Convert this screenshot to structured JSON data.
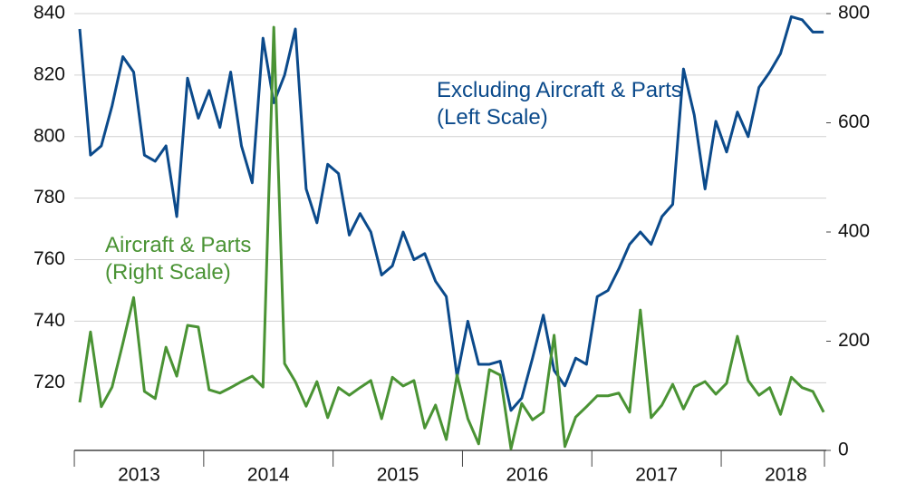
{
  "chart_data": {
    "type": "line",
    "categories": [
      null,
      null,
      null,
      null,
      null,
      null,
      "2013",
      null,
      null,
      null,
      null,
      null,
      null,
      null,
      null,
      null,
      null,
      null,
      "2014",
      null,
      null,
      null,
      null,
      null,
      null,
      null,
      null,
      null,
      null,
      null,
      "2015",
      null,
      null,
      null,
      null,
      null,
      null,
      null,
      null,
      null,
      null,
      null,
      "2016",
      null,
      null,
      null,
      null,
      null,
      null,
      null,
      null,
      null,
      null,
      null,
      "2017",
      null,
      null,
      null,
      null,
      null,
      null,
      null,
      null,
      null,
      null,
      null,
      "2018",
      null,
      null,
      null
    ],
    "series": [
      {
        "name": "Excluding Aircraft & Parts (Left Scale)",
        "color": "#0b4a8b",
        "values": [
          835,
          794,
          797,
          810,
          826,
          821,
          794,
          792,
          797,
          774,
          819,
          806,
          815,
          803,
          821,
          797,
          785,
          832,
          811,
          820,
          835,
          783,
          772,
          791,
          788,
          768,
          775,
          769,
          755,
          758,
          769,
          760,
          762,
          753,
          748,
          722,
          740,
          726,
          726,
          727,
          711,
          715,
          728,
          742,
          724,
          719,
          728,
          726,
          748,
          750,
          757,
          765,
          769,
          765,
          774,
          778,
          822,
          807,
          783,
          805,
          795,
          808,
          800,
          816,
          821,
          827,
          839,
          838,
          834,
          834
        ]
      },
      {
        "name": "Aircraft & Parts (Right Scale)",
        "color": "#4a9334",
        "axis": "y2",
        "values": [
          88,
          217,
          80,
          116,
          196,
          280,
          108,
          95,
          189,
          136,
          229,
          226,
          111,
          105,
          115,
          126,
          136,
          116,
          775,
          159,
          126,
          81,
          126,
          60,
          115,
          101,
          115,
          128,
          58,
          134,
          118,
          128,
          41,
          83,
          20,
          138,
          58,
          12,
          148,
          138,
          3,
          86,
          56,
          70,
          211,
          7,
          61,
          80,
          100,
          100,
          105,
          70,
          257,
          60,
          83,
          121,
          76,
          116,
          126,
          103,
          123,
          209,
          128,
          101,
          115,
          66,
          134,
          115,
          108,
          70
        ]
      }
    ],
    "ylim": [
      698,
      840
    ],
    "yticks": [
      720,
      740,
      760,
      780,
      800,
      820,
      840
    ],
    "y2lim": [
      0,
      800
    ],
    "y2ticks": [
      0,
      200,
      400,
      600,
      800
    ],
    "grid": true
  }
}
